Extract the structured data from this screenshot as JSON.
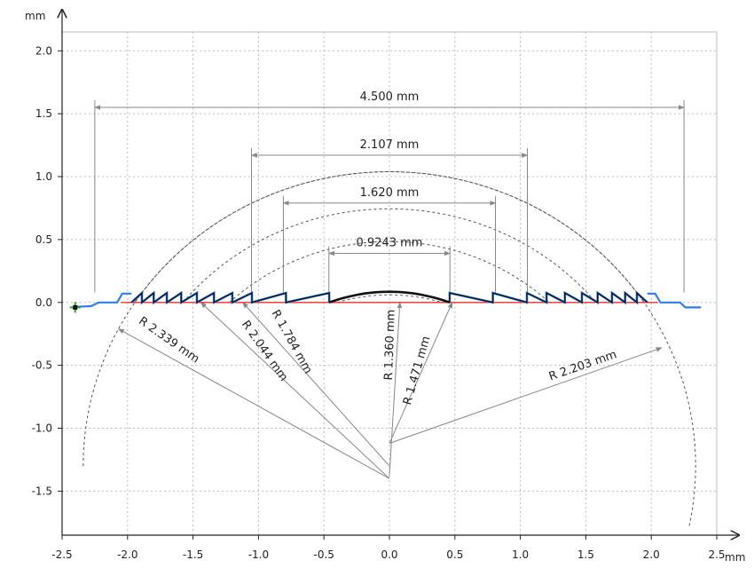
{
  "chart_data": {
    "type": "line",
    "title": "",
    "xlabel": "mm",
    "ylabel": "mm",
    "xlim": [
      -2.5,
      2.5
    ],
    "ylim": [
      -1.85,
      2.15
    ],
    "x_ticks": [
      -2.5,
      -2.0,
      -1.5,
      -1.0,
      -0.5,
      0.0,
      0.5,
      1.0,
      1.5,
      2.0,
      2.5
    ],
    "x_tick_labels": [
      "-2.5",
      "-2.0",
      "-1.5",
      "-1.0",
      "-0.5",
      "0.0",
      "0.5",
      "1.0",
      "1.5",
      "2.0",
      "2.5"
    ],
    "y_ticks": [
      2.0,
      1.5,
      1.0,
      0.5,
      0.0,
      -0.5,
      -1.0,
      -1.5
    ],
    "y_tick_labels": [
      "2.0",
      "1.5",
      "1.0",
      "0.5",
      "0.0",
      "-0.5",
      "-1.0",
      "-1.5"
    ],
    "grid": true,
    "colors": {
      "profile_measured": "#2f7fe6",
      "profile_fit": "#111111",
      "baseline": "#e83030",
      "dimension": "#888888",
      "grid": "#bbbbbb",
      "start_marker": "#2aa02a"
    },
    "baseline": {
      "y": 0.0,
      "x_range": [
        -2.05,
        2.05
      ]
    },
    "profile": {
      "lens_cap": {
        "x_range": [
          -0.46,
          0.46
        ],
        "peak": 0.085
      },
      "zone_edges": [
        -0.46,
        -0.79,
        -1.05,
        -1.2,
        -1.34,
        -1.47,
        -1.59,
        -1.7,
        -1.8,
        -1.89,
        -1.97,
        0.46,
        0.79,
        1.05,
        1.2,
        1.34,
        1.47,
        1.59,
        1.7,
        1.8,
        1.89,
        1.97
      ],
      "zone_peak_height": 0.075,
      "flat_segments": [
        {
          "x": [
            -2.4,
            -2.05
          ],
          "y": -0.035
        },
        {
          "x": [
            2.05,
            2.38
          ],
          "y": -0.04
        }
      ]
    },
    "dimensions": [
      {
        "label": "4.500 mm",
        "value": 4.5,
        "x1": -2.25,
        "x2": 2.25,
        "y": 1.55
      },
      {
        "label": "2.107 mm",
        "value": 2.107,
        "x1": -1.0535,
        "x2": 1.0535,
        "y": 1.17
      },
      {
        "label": "1.620 mm",
        "value": 1.62,
        "x1": -0.81,
        "x2": 0.81,
        "y": 0.79
      },
      {
        "label": "0.9243 mm",
        "value": 0.9243,
        "x1": -0.46215,
        "x2": 0.46215,
        "y": 0.39
      }
    ],
    "arcs": [
      {
        "radius": 1.784,
        "cy": -1.3
      },
      {
        "radius": 2.044,
        "cy": -1.3
      },
      {
        "radius": 2.339,
        "cy": -1.3
      },
      {
        "radius": 1.36,
        "cy": -1.3
      }
    ],
    "radii": [
      {
        "label": "R 2.339 mm",
        "value": 2.339,
        "from": [
          0.0,
          -1.4
        ],
        "to": [
          -2.07,
          -0.21
        ]
      },
      {
        "label": "R 2.044 mm",
        "value": 2.044,
        "from": [
          0.0,
          -1.4
        ],
        "to": [
          -1.44,
          -0.0
        ]
      },
      {
        "label": "R 1.784 mm",
        "value": 1.784,
        "from": [
          0.0,
          -1.3
        ],
        "to": [
          -1.12,
          -0.0
        ]
      },
      {
        "label": "R 1.360 mm",
        "value": 1.36,
        "from": [
          0.0,
          -1.38
        ],
        "to": [
          0.08,
          -0.0
        ]
      },
      {
        "label": "R 1.471 mm",
        "value": 1.471,
        "from": [
          0.0,
          -1.12
        ],
        "to": [
          0.48,
          -0.0
        ]
      },
      {
        "label": "R 2.203 mm",
        "value": 2.203,
        "from": [
          0.0,
          -1.12
        ],
        "to": [
          2.08,
          -0.36
        ]
      }
    ],
    "start_marker": {
      "x": -2.4,
      "y": -0.04
    },
    "legend": "none"
  }
}
